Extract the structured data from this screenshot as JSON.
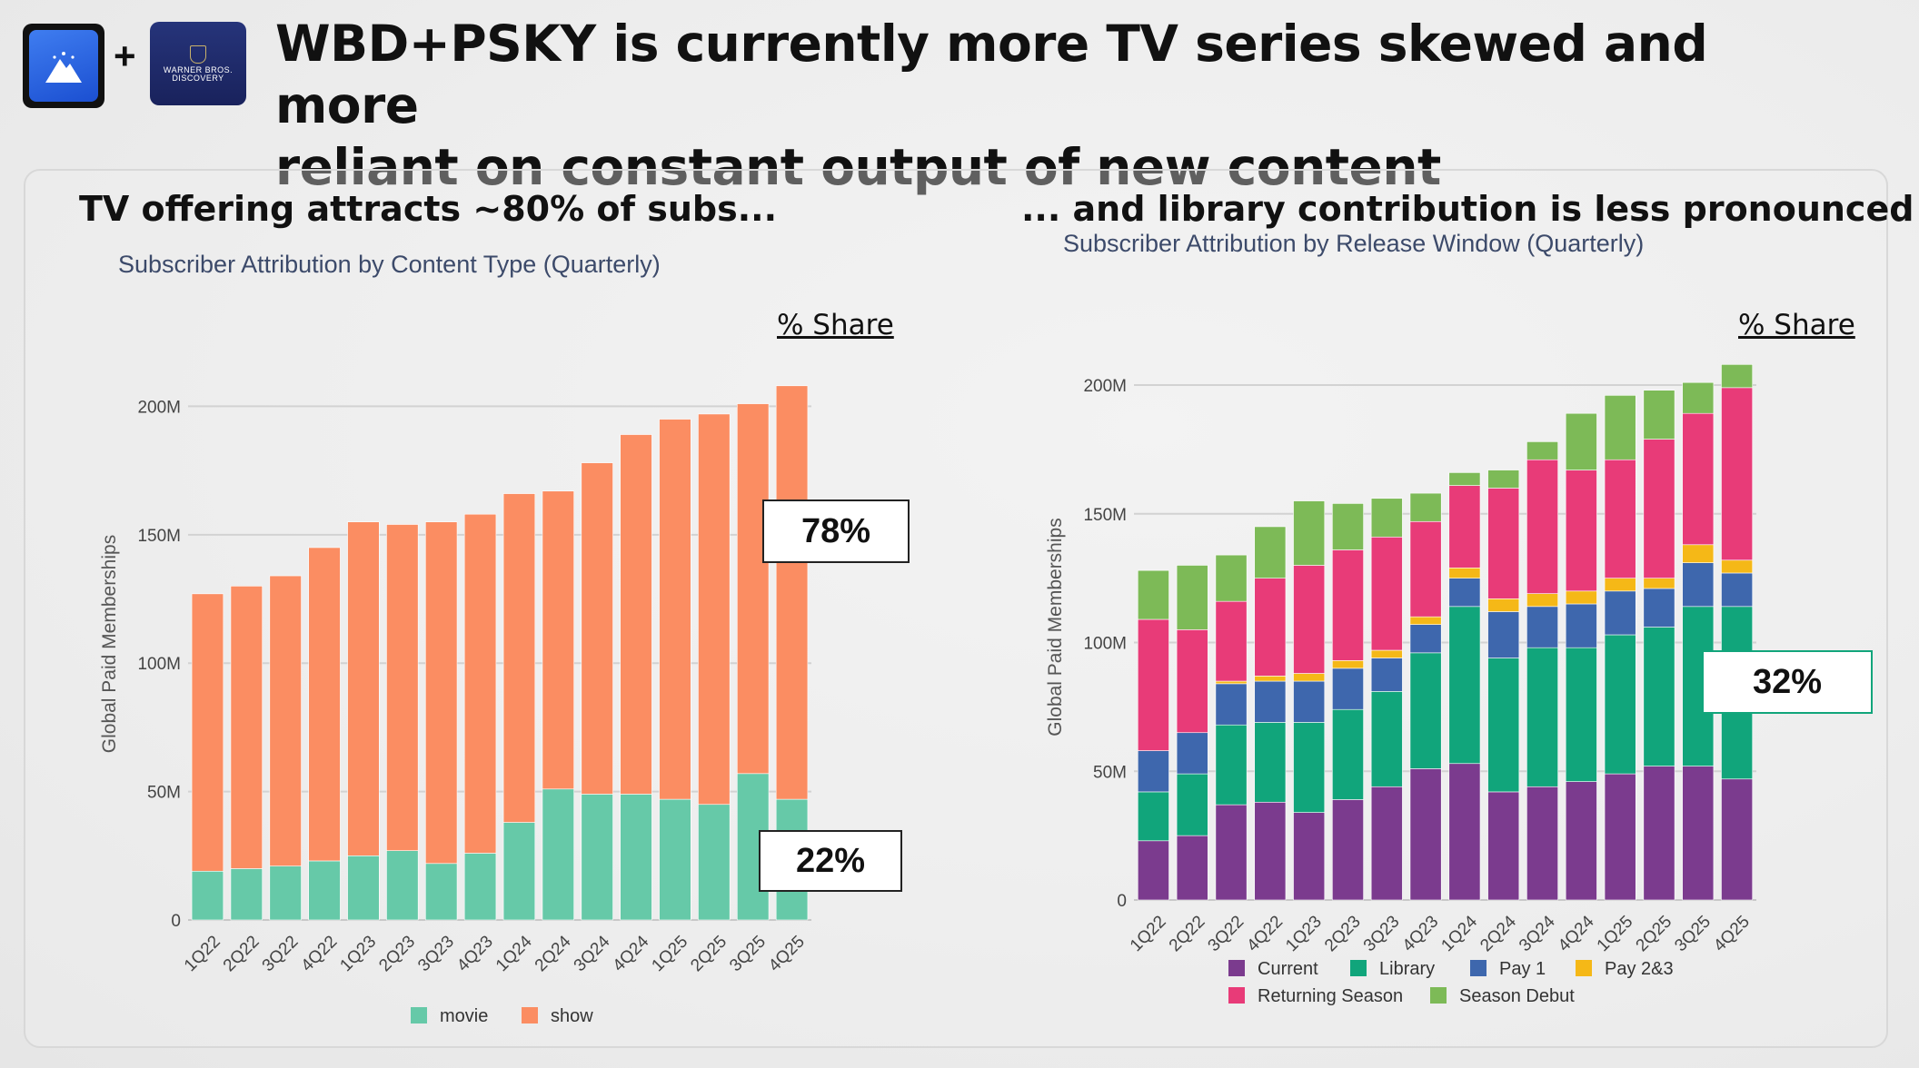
{
  "header": {
    "plus": "+",
    "wbd_logo_text": "WARNER BROS. DISCOVERY",
    "title_line1": "WBD+PSKY is currently more TV series skewed and more",
    "title_line2": "reliant on constant output of new content"
  },
  "left_panel": {
    "heading": "TV offering attracts ~80% of subs...",
    "share_label": "% Share",
    "callouts": {
      "show_share": "78%",
      "movie_share": "22%"
    }
  },
  "right_panel": {
    "heading": "... and library contribution is less pronounced",
    "share_label": "% Share",
    "callouts": {
      "library_share": "32%"
    }
  },
  "colors": {
    "movie": "#66c9a8",
    "show": "#fb8d62",
    "Current": "#7b3b8e",
    "Library": "#11a57b",
    "Pay 1": "#3e67ad",
    "Pay 2&3": "#f5b817",
    "Returning Season": "#e83b78",
    "Season Debut": "#7dba57",
    "grid": "#d2d2d2",
    "axis_text": "#444444"
  },
  "chart_data": [
    {
      "type": "bar",
      "stacked": true,
      "title": "Subscriber Attribution by Content Type (Quarterly)",
      "ylabel": "Global Paid Memberships",
      "xlabel": "",
      "ylim": [
        0,
        215000000
      ],
      "yticks": [
        0,
        50000000,
        100000000,
        150000000,
        200000000
      ],
      "ytick_labels": [
        "0",
        "50M",
        "100M",
        "150M",
        "200M"
      ],
      "grid": true,
      "legend_position": "bottom",
      "categories": [
        "1Q22",
        "2Q22",
        "3Q22",
        "4Q22",
        "1Q23",
        "2Q23",
        "3Q23",
        "4Q23",
        "1Q24",
        "2Q24",
        "3Q24",
        "4Q24",
        "1Q25",
        "2Q25",
        "3Q25",
        "4Q25"
      ],
      "series": [
        {
          "name": "movie",
          "values": [
            19,
            20,
            21,
            23,
            25,
            27,
            22,
            26,
            38,
            51,
            49,
            49,
            47,
            45,
            57,
            47
          ]
        },
        {
          "name": "show",
          "values": [
            108,
            110,
            113,
            122,
            130,
            127,
            133,
            132,
            128,
            116,
            129,
            140,
            148,
            152,
            144,
            161
          ]
        }
      ],
      "unit": "M"
    },
    {
      "type": "bar",
      "stacked": true,
      "title": "Subscriber Attribution by Release Window (Quarterly)",
      "ylabel": "Global Paid Memberships",
      "xlabel": "",
      "ylim": [
        0,
        212000000
      ],
      "yticks": [
        0,
        50000000,
        100000000,
        150000000,
        200000000
      ],
      "ytick_labels": [
        "0",
        "50M",
        "100M",
        "150M",
        "200M"
      ],
      "grid": true,
      "legend_position": "bottom",
      "categories": [
        "1Q22",
        "2Q22",
        "3Q22",
        "4Q22",
        "1Q23",
        "2Q23",
        "3Q23",
        "4Q23",
        "1Q24",
        "2Q24",
        "3Q24",
        "4Q24",
        "1Q25",
        "2Q25",
        "3Q25",
        "4Q25"
      ],
      "series": [
        {
          "name": "Current",
          "values": [
            23,
            25,
            37,
            38,
            34,
            39,
            44,
            51,
            53,
            42,
            44,
            46,
            49,
            52,
            52,
            47
          ]
        },
        {
          "name": "Library",
          "values": [
            19,
            24,
            31,
            31,
            35,
            35,
            37,
            45,
            61,
            52,
            54,
            52,
            54,
            54,
            62,
            67
          ]
        },
        {
          "name": "Pay 1",
          "values": [
            16,
            16,
            16,
            16,
            16,
            16,
            13,
            11,
            11,
            18,
            16,
            17,
            17,
            15,
            17,
            13
          ]
        },
        {
          "name": "Pay 2&3",
          "values": [
            0,
            0,
            1,
            2,
            3,
            3,
            3,
            3,
            4,
            5,
            5,
            5,
            5,
            4,
            7,
            5
          ]
        },
        {
          "name": "Returning Season",
          "values": [
            51,
            40,
            31,
            38,
            42,
            43,
            44,
            37,
            32,
            43,
            52,
            47,
            46,
            54,
            51,
            67
          ]
        },
        {
          "name": "Season Debut",
          "values": [
            19,
            25,
            18,
            20,
            25,
            18,
            15,
            11,
            5,
            7,
            7,
            22,
            25,
            19,
            12,
            9
          ]
        }
      ],
      "unit": "M"
    }
  ]
}
